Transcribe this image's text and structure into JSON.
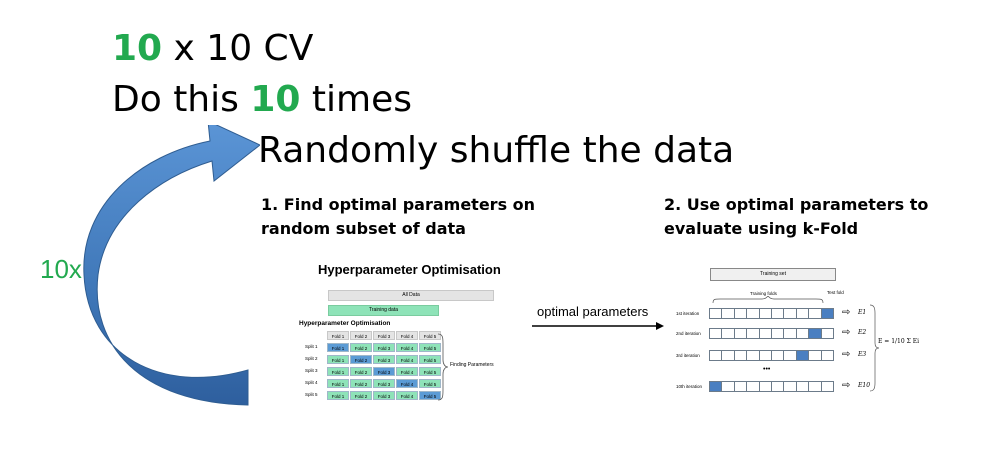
{
  "title_line1": {
    "num": "10",
    "rest": " x 10 CV"
  },
  "title_line2": {
    "pre": "Do this ",
    "num": "10",
    "post": " times"
  },
  "shuffle_text": "Randomly shuffle the data",
  "loop_label": "10x",
  "step1": {
    "line1": "1. Find optimal parameters on",
    "line2": "random subset of data"
  },
  "step2": {
    "line1": "2. Use optimal parameters to",
    "line2": "evaluate using k-Fold"
  },
  "arrow_label": "optimal parameters",
  "hyperopt": {
    "title": "Hyperparameter Optimisation",
    "all_data": "All Data",
    "training_data": "Training data",
    "subtitle": "Hyperparameter Optimisation",
    "fold_headers": [
      "Fold 1",
      "Fold 2",
      "Fold 3",
      "Fold 4",
      "Fold 5"
    ],
    "splits": [
      "Split 1",
      "Split 2",
      "Split 3",
      "Split 4",
      "Split 5"
    ],
    "finding_label": "Finding Parameters"
  },
  "kfold": {
    "training_set": "Training set",
    "training_folds": "Training folds",
    "test_fold": "Test fold",
    "iterations": [
      "1st iteration",
      "2nd iteration",
      "3rd iteration",
      "10th iteration"
    ],
    "errors": [
      "E1",
      "E2",
      "E3",
      "E10"
    ],
    "ellipsis": "•••",
    "formula": "E = 1/10 Σ Ei"
  },
  "colors": {
    "green": "#22a94f",
    "arrow_blue": "#4f86c6",
    "fold_green": "#8ee3b8",
    "fold_blue": "#5b9bd5",
    "test_blue": "#4a7fc1"
  }
}
